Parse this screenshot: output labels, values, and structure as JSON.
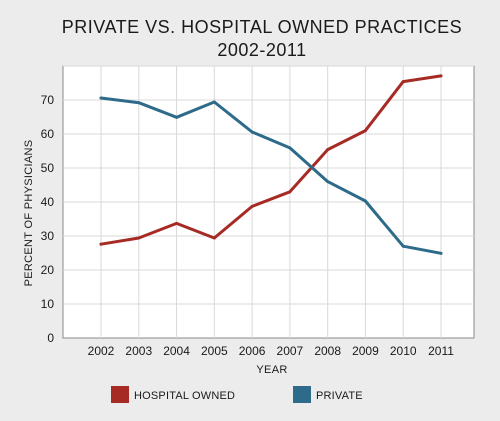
{
  "chart_data": {
    "type": "line",
    "title": "PRIVATE VS. HOSPITAL OWNED PRACTICES",
    "subtitle": "2002-2011",
    "xlabel": "YEAR",
    "ylabel": "PERCENT OF PHYSICIANS",
    "x": [
      "2002",
      "2003",
      "2004",
      "2005",
      "2006",
      "2007",
      "2008",
      "2009",
      "2010",
      "2011"
    ],
    "yticks": [
      0,
      10,
      20,
      30,
      40,
      50,
      60,
      70
    ],
    "ylim": [
      0,
      80
    ],
    "grid": true,
    "legend_position": "bottom",
    "series": [
      {
        "name": "HOSPITAL OWNED",
        "color": "#a72b25",
        "values": [
          27.6,
          29.4,
          33.7,
          29.4,
          38.7,
          43.0,
          55.4,
          61.0,
          75.4,
          77.1
        ]
      },
      {
        "name": "PRIVATE",
        "color": "#2e6a89",
        "values": [
          70.6,
          69.2,
          64.9,
          69.4,
          60.6,
          55.9,
          46.0,
          40.3,
          27.0,
          24.9
        ]
      }
    ]
  }
}
